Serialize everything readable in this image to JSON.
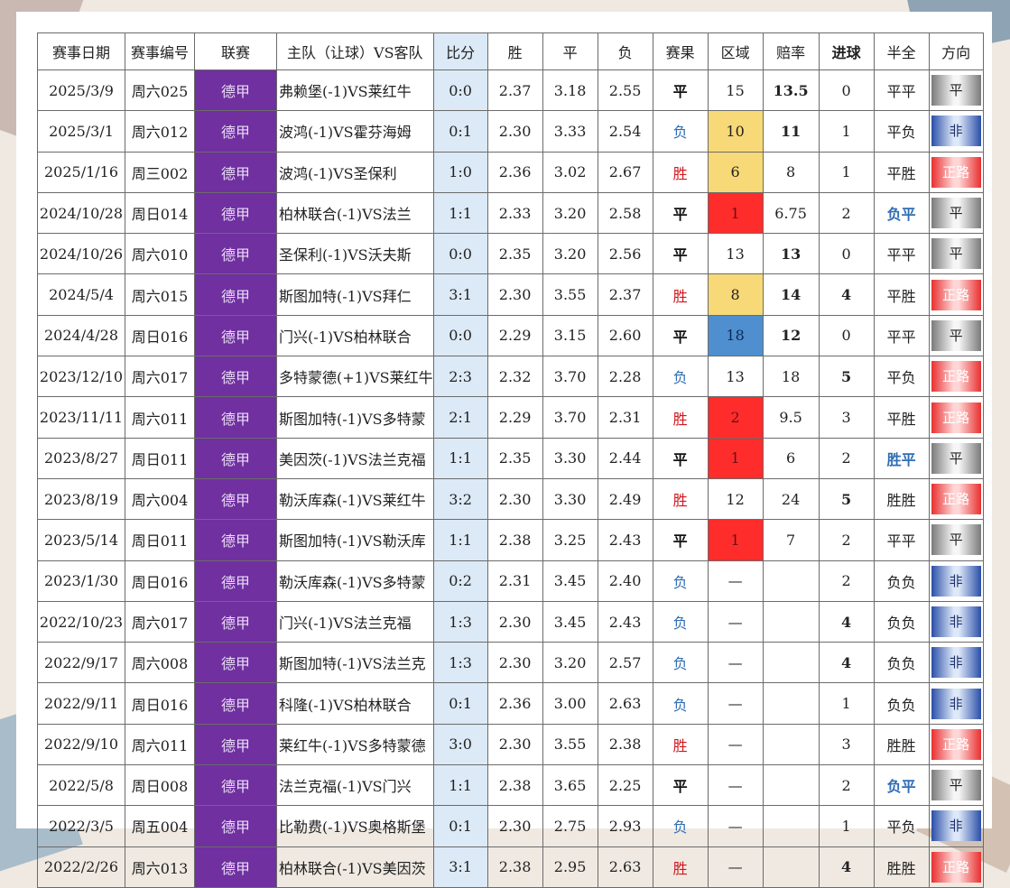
{
  "headers": [
    "赛事日期",
    "赛事编号",
    "联赛",
    "主队（让球）VS客队",
    "比分",
    "胜",
    "平",
    "负",
    "赛果",
    "区域",
    "赔率",
    "进球",
    "半全",
    "方向"
  ],
  "colors": {
    "league_bg": "#7030a0",
    "score_bg": "#dce9f6",
    "zone_yellow": "#f8d977",
    "zone_red": "#ff2c2c",
    "zone_blue": "#4f8fd0",
    "result_win": "#d0161e",
    "result_lose": "#2f6db3"
  },
  "rows": [
    {
      "date": "2025/3/9",
      "id": "周六025",
      "league": "德甲",
      "teams": "弗赖堡(-1)VS莱红牛",
      "score": "0:0",
      "w": "2.37",
      "d": "3.18",
      "l": "2.55",
      "result": "平",
      "zone": "15",
      "odds": "13.5",
      "goals": "0",
      "half": "平平",
      "dir": "平"
    },
    {
      "date": "2025/3/1",
      "id": "周六012",
      "league": "德甲",
      "teams": "波鸿(-1)VS霍芬海姆",
      "score": "0:1",
      "w": "2.30",
      "d": "3.33",
      "l": "2.54",
      "result": "负",
      "zone": "10",
      "odds": "11",
      "goals": "1",
      "half": "平负",
      "dir": "非"
    },
    {
      "date": "2025/1/16",
      "id": "周三002",
      "league": "德甲",
      "teams": "波鸿(-1)VS圣保利",
      "score": "1:0",
      "w": "2.36",
      "d": "3.02",
      "l": "2.67",
      "result": "胜",
      "zone": "6",
      "odds": "8",
      "goals": "1",
      "half": "平胜",
      "dir": "正路"
    },
    {
      "date": "2024/10/28",
      "id": "周日014",
      "league": "德甲",
      "teams": "柏林联合(-1)VS法兰",
      "score": "1:1",
      "w": "2.33",
      "d": "3.20",
      "l": "2.58",
      "result": "平",
      "zone": "1",
      "odds": "6.75",
      "goals": "2",
      "half": "负平",
      "dir": "平"
    },
    {
      "date": "2024/10/26",
      "id": "周六010",
      "league": "德甲",
      "teams": "圣保利(-1)VS沃夫斯",
      "score": "0:0",
      "w": "2.35",
      "d": "3.20",
      "l": "2.56",
      "result": "平",
      "zone": "13",
      "odds": "13",
      "goals": "0",
      "half": "平平",
      "dir": "平"
    },
    {
      "date": "2024/5/4",
      "id": "周六015",
      "league": "德甲",
      "teams": "斯图加特(-1)VS拜仁",
      "score": "3:1",
      "w": "2.30",
      "d": "3.55",
      "l": "2.37",
      "result": "胜",
      "zone": "8",
      "odds": "14",
      "goals": "4",
      "half": "平胜",
      "dir": "正路"
    },
    {
      "date": "2024/4/28",
      "id": "周日016",
      "league": "德甲",
      "teams": "门兴(-1)VS柏林联合",
      "score": "0:0",
      "w": "2.29",
      "d": "3.15",
      "l": "2.60",
      "result": "平",
      "zone": "18",
      "odds": "12",
      "goals": "0",
      "half": "平平",
      "dir": "平"
    },
    {
      "date": "2023/12/10",
      "id": "周六017",
      "league": "德甲",
      "teams": "多特蒙德(+1)VS莱红牛",
      "score": "2:3",
      "w": "2.32",
      "d": "3.70",
      "l": "2.28",
      "result": "负",
      "zone": "13",
      "odds": "18",
      "goals": "5",
      "half": "平负",
      "dir": "正路"
    },
    {
      "date": "2023/11/11",
      "id": "周六011",
      "league": "德甲",
      "teams": "斯图加特(-1)VS多特蒙",
      "score": "2:1",
      "w": "2.29",
      "d": "3.70",
      "l": "2.31",
      "result": "胜",
      "zone": "2",
      "odds": "9.5",
      "goals": "3",
      "half": "平胜",
      "dir": "正路"
    },
    {
      "date": "2023/8/27",
      "id": "周日011",
      "league": "德甲",
      "teams": "美因茨(-1)VS法兰克福",
      "score": "1:1",
      "w": "2.35",
      "d": "3.30",
      "l": "2.44",
      "result": "平",
      "zone": "1",
      "odds": "6",
      "goals": "2",
      "half": "胜平",
      "dir": "平"
    },
    {
      "date": "2023/8/19",
      "id": "周六004",
      "league": "德甲",
      "teams": "勒沃库森(-1)VS莱红牛",
      "score": "3:2",
      "w": "2.30",
      "d": "3.30",
      "l": "2.49",
      "result": "胜",
      "zone": "12",
      "odds": "24",
      "goals": "5",
      "half": "胜胜",
      "dir": "正路"
    },
    {
      "date": "2023/5/14",
      "id": "周日011",
      "league": "德甲",
      "teams": "斯图加特(-1)VS勒沃库",
      "score": "1:1",
      "w": "2.38",
      "d": "3.25",
      "l": "2.43",
      "result": "平",
      "zone": "1",
      "odds": "7",
      "goals": "2",
      "half": "平平",
      "dir": "平"
    },
    {
      "date": "2023/1/30",
      "id": "周日016",
      "league": "德甲",
      "teams": "勒沃库森(-1)VS多特蒙",
      "score": "0:2",
      "w": "2.31",
      "d": "3.45",
      "l": "2.40",
      "result": "负",
      "zone": "—",
      "odds": "",
      "goals": "2",
      "half": "负负",
      "dir": "非"
    },
    {
      "date": "2022/10/23",
      "id": "周六017",
      "league": "德甲",
      "teams": "门兴(-1)VS法兰克福",
      "score": "1:3",
      "w": "2.30",
      "d": "3.45",
      "l": "2.43",
      "result": "负",
      "zone": "—",
      "odds": "",
      "goals": "4",
      "half": "负负",
      "dir": "非"
    },
    {
      "date": "2022/9/17",
      "id": "周六008",
      "league": "德甲",
      "teams": "斯图加特(-1)VS法兰克",
      "score": "1:3",
      "w": "2.30",
      "d": "3.20",
      "l": "2.57",
      "result": "负",
      "zone": "—",
      "odds": "",
      "goals": "4",
      "half": "负负",
      "dir": "非"
    },
    {
      "date": "2022/9/11",
      "id": "周日016",
      "league": "德甲",
      "teams": "科隆(-1)VS柏林联合",
      "score": "0:1",
      "w": "2.36",
      "d": "3.00",
      "l": "2.63",
      "result": "负",
      "zone": "—",
      "odds": "",
      "goals": "1",
      "half": "负负",
      "dir": "非"
    },
    {
      "date": "2022/9/10",
      "id": "周六011",
      "league": "德甲",
      "teams": "莱红牛(-1)VS多特蒙德",
      "score": "3:0",
      "w": "2.30",
      "d": "3.55",
      "l": "2.38",
      "result": "胜",
      "zone": "—",
      "odds": "",
      "goals": "3",
      "half": "胜胜",
      "dir": "正路"
    },
    {
      "date": "2022/5/8",
      "id": "周日008",
      "league": "德甲",
      "teams": "法兰克福(-1)VS门兴",
      "score": "1:1",
      "w": "2.38",
      "d": "3.65",
      "l": "2.25",
      "result": "平",
      "zone": "—",
      "odds": "",
      "goals": "2",
      "half": "负平",
      "dir": "平"
    },
    {
      "date": "2022/3/5",
      "id": "周五004",
      "league": "德甲",
      "teams": "比勒费(-1)VS奥格斯堡",
      "score": "0:1",
      "w": "2.30",
      "d": "2.75",
      "l": "2.93",
      "result": "负",
      "zone": "—",
      "odds": "",
      "goals": "1",
      "half": "平负",
      "dir": "非"
    },
    {
      "date": "2022/2/26",
      "id": "周六013",
      "league": "德甲",
      "teams": "柏林联合(-1)VS美因茨",
      "score": "3:1",
      "w": "2.38",
      "d": "2.95",
      "l": "2.63",
      "result": "胜",
      "zone": "—",
      "odds": "",
      "goals": "4",
      "half": "胜胜",
      "dir": "正路"
    }
  ]
}
